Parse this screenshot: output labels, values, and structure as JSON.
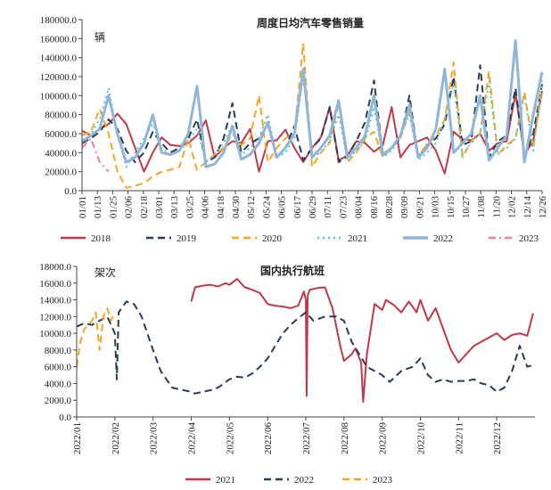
{
  "chart_data": [
    {
      "type": "line",
      "title": "周度日均汽车零售销量",
      "unit_label": "辆",
      "ylim": [
        0,
        180000
      ],
      "yticks": [
        0,
        20000,
        40000,
        60000,
        80000,
        100000,
        120000,
        140000,
        160000,
        180000
      ],
      "ytick_labels": [
        "0.0",
        "20000.0",
        "40000.0",
        "60000.0",
        "80000.0",
        "100000.0",
        "120000.0",
        "140000.0",
        "160000.0",
        "180000.0"
      ],
      "x_labels": [
        "01/01",
        "01/13",
        "01/25",
        "02/06",
        "02/18",
        "03/01",
        "03/13",
        "03/25",
        "04/06",
        "04/18",
        "04/30",
        "05/12",
        "05/24",
        "06/05",
        "06/17",
        "06/29",
        "07/11",
        "07/23",
        "08/04",
        "08/16",
        "08/28",
        "09/09",
        "09/21",
        "10/03",
        "10/15",
        "10/27",
        "11/08",
        "11/20",
        "12/02",
        "12/14",
        "12/26"
      ],
      "x_unit": "week index (0 = 01/01, 52 = 12/26)",
      "xlim": [
        0,
        52
      ],
      "legend_position": "bottom",
      "series": [
        {
          "name": "2018",
          "color": "#c0394b",
          "dash": "solid",
          "width": 2,
          "x": [
            0,
            1,
            2,
            3,
            4,
            5,
            6,
            7,
            8,
            9,
            10,
            11,
            12,
            13,
            14,
            15,
            16,
            17,
            18,
            19,
            20,
            21,
            22,
            23,
            24,
            25,
            26,
            27,
            28,
            29,
            30,
            31,
            32,
            33,
            34,
            35,
            36,
            37,
            38,
            39,
            40,
            41,
            42,
            43,
            44,
            45,
            46,
            47,
            48,
            49,
            50,
            51,
            52
          ],
          "y": [
            63000,
            58000,
            65000,
            70000,
            81000,
            70000,
            45000,
            20000,
            40000,
            56000,
            48000,
            47000,
            50000,
            58000,
            74000,
            35000,
            45000,
            52000,
            50000,
            65000,
            20000,
            52000,
            53000,
            64000,
            45000,
            30000,
            45000,
            56000,
            88000,
            32000,
            37000,
            52000,
            50000,
            41000,
            48000,
            88000,
            35000,
            48000,
            52000,
            56000,
            42000,
            18000,
            62000,
            54000,
            53000,
            60000,
            42000,
            50000,
            52000,
            102000,
            38000,
            52000,
            105000
          ]
        },
        {
          "name": "2019",
          "color": "#2b3a55",
          "dash": "8,5",
          "width": 2,
          "x": [
            0,
            1,
            2,
            3,
            4,
            5,
            6,
            7,
            8,
            9,
            10,
            11,
            12,
            13,
            14,
            15,
            16,
            17,
            18,
            19,
            20,
            21,
            22,
            23,
            24,
            25,
            26,
            27,
            28,
            29,
            30,
            31,
            32,
            33,
            34,
            35,
            36,
            37,
            38,
            39,
            40,
            41,
            42,
            43,
            44,
            45,
            46,
            47,
            48,
            49,
            50,
            51,
            52
          ],
          "y": [
            50000,
            55000,
            62000,
            75000,
            65000,
            42000,
            30000,
            40000,
            62000,
            50000,
            40000,
            45000,
            55000,
            75000,
            30000,
            35000,
            55000,
            92000,
            40000,
            50000,
            55000,
            70000,
            35000,
            45000,
            68000,
            32000,
            45000,
            55000,
            88000,
            30000,
            36000,
            52000,
            72000,
            116000,
            38000,
            45000,
            55000,
            100000,
            35000,
            48000,
            55000,
            70000,
            120000,
            48000,
            52000,
            132000,
            35000,
            52000,
            58000,
            108000,
            35000,
            60000,
            112000
          ]
        },
        {
          "name": "2020",
          "color": "#f5a623",
          "dash": "8,5",
          "width": 2,
          "x": [
            0,
            1,
            2,
            3,
            4,
            5,
            6,
            7,
            8,
            9,
            10,
            11,
            12,
            13,
            14,
            15,
            16,
            17,
            18,
            19,
            20,
            21,
            22,
            23,
            24,
            25,
            26,
            27,
            28,
            29,
            30,
            31,
            32,
            33,
            34,
            35,
            36,
            37,
            38,
            39,
            40,
            41,
            42,
            43,
            44,
            45,
            46,
            47,
            48,
            49,
            50,
            51,
            52
          ],
          "y": [
            58000,
            62000,
            86000,
            60000,
            20000,
            3000,
            5000,
            8000,
            15000,
            20000,
            22000,
            25000,
            55000,
            22000,
            30000,
            38000,
            45000,
            60000,
            48000,
            55000,
            100000,
            30000,
            45000,
            55000,
            60000,
            155000,
            25000,
            40000,
            50000,
            92000,
            30000,
            40000,
            55000,
            62000,
            35000,
            45000,
            55000,
            85000,
            38000,
            48000,
            58000,
            75000,
            135000,
            35000,
            52000,
            60000,
            125000,
            38000,
            48000,
            55000,
            104000,
            45000,
            110000
          ]
        },
        {
          "name": "2021",
          "color": "#5bc5cf",
          "dash": "2,4",
          "width": 2,
          "x": [
            0,
            1,
            2,
            3,
            4,
            5,
            6,
            7,
            8,
            9,
            10,
            11,
            12,
            13,
            14,
            15,
            16,
            17,
            18,
            19,
            20,
            21,
            22,
            23,
            24,
            25,
            26,
            27,
            28,
            29,
            30,
            31,
            32,
            33,
            34,
            35,
            36,
            37,
            38,
            39,
            40,
            41,
            42,
            43,
            44,
            45,
            46,
            47,
            48,
            49,
            50,
            51,
            52
          ],
          "y": [
            48000,
            60000,
            75000,
            108000,
            60000,
            25000,
            40000,
            55000,
            70000,
            45000,
            38000,
            42000,
            52000,
            65000,
            30000,
            38000,
            50000,
            70000,
            38000,
            45000,
            55000,
            80000,
            35000,
            40000,
            55000,
            120000,
            35000,
            40000,
            52000,
            80000,
            32000,
            42000,
            52000,
            88000,
            35000,
            42000,
            58000,
            80000,
            32000,
            40000,
            50000,
            75000,
            112000,
            38000,
            50000,
            60000,
            115000,
            38000,
            45000,
            55000,
            100000,
            42000,
            118000
          ]
        },
        {
          "name": "2022",
          "color": "#8fb6d9",
          "dash": "solid",
          "width": 3,
          "x": [
            0,
            1,
            2,
            3,
            4,
            5,
            6,
            7,
            8,
            9,
            10,
            11,
            12,
            13,
            14,
            15,
            16,
            17,
            18,
            19,
            20,
            21,
            22,
            23,
            24,
            25,
            26,
            27,
            28,
            29,
            30,
            31,
            32,
            33,
            34,
            35,
            36,
            37,
            38,
            39,
            40,
            41,
            42,
            43,
            44,
            45,
            46,
            47,
            48,
            49,
            50,
            51,
            52
          ],
          "y": [
            52000,
            58000,
            65000,
            100000,
            60000,
            30000,
            35000,
            50000,
            80000,
            40000,
            38000,
            42000,
            60000,
            110000,
            25000,
            28000,
            40000,
            68000,
            33000,
            38000,
            50000,
            72000,
            35000,
            45000,
            60000,
            128000,
            35000,
            45000,
            58000,
            95000,
            35000,
            45000,
            58000,
            100000,
            38000,
            45000,
            58000,
            90000,
            35000,
            45000,
            65000,
            128000,
            40000,
            50000,
            60000,
            100000,
            32000,
            45000,
            58000,
            158000,
            30000,
            80000,
            125000
          ]
        },
        {
          "name": "2023",
          "color": "#f27c94",
          "dash": "8,4,2,4",
          "width": 2,
          "x": [
            0,
            1,
            2,
            3
          ],
          "y": [
            45000,
            55000,
            30000,
            20000
          ]
        }
      ]
    },
    {
      "type": "line",
      "title": "国内执行航班",
      "unit_label": "架次",
      "ylim": [
        0,
        18000
      ],
      "yticks": [
        0,
        2000,
        4000,
        6000,
        8000,
        10000,
        12000,
        14000,
        16000,
        18000
      ],
      "ytick_labels": [
        "0.0",
        "2000.0",
        "4000.0",
        "6000.0",
        "8000.0",
        "10000.0",
        "12000.0",
        "14000.0",
        "16000.0",
        "18000.0"
      ],
      "x_labels": [
        "2022/01",
        "2022/02",
        "2022/03",
        "2022/04",
        "2022/05",
        "2022/06",
        "2022/07",
        "2022/08",
        "2022/09",
        "2022/10",
        "2022/11",
        "2022/12"
      ],
      "x_unit": "month of year (1 = Jan, 13 = end of Dec)",
      "xlim": [
        1,
        13
      ],
      "legend_position": "bottom",
      "series": [
        {
          "name": "2021",
          "color": "#c0394b",
          "dash": "solid",
          "width": 2,
          "x": [
            4.0,
            4.1,
            4.3,
            4.5,
            4.7,
            4.9,
            5.0,
            5.2,
            5.4,
            5.6,
            5.8,
            6.0,
            6.2,
            6.4,
            6.6,
            6.8,
            6.95,
            7.0,
            7.02,
            7.05,
            7.1,
            7.3,
            7.5,
            7.7,
            7.9,
            8.0,
            8.2,
            8.3,
            8.45,
            8.5,
            8.6,
            8.8,
            9.0,
            9.1,
            9.3,
            9.5,
            9.7,
            9.9,
            10.0,
            10.2,
            10.4,
            10.6,
            10.8,
            11.0,
            11.2,
            11.4,
            11.6,
            11.8,
            12.0,
            12.2,
            12.4,
            12.6,
            12.8,
            12.95
          ],
          "y": [
            13800,
            15500,
            15700,
            15800,
            15600,
            16000,
            15800,
            16500,
            15500,
            15200,
            14800,
            13500,
            13300,
            13200,
            13000,
            13300,
            15000,
            14000,
            2500,
            14500,
            15200,
            15400,
            15500,
            13000,
            8500,
            6700,
            7500,
            8200,
            6500,
            1800,
            7500,
            13500,
            12800,
            14000,
            13400,
            12500,
            13800,
            12500,
            14000,
            11500,
            13000,
            10500,
            8000,
            6500,
            7500,
            8500,
            9000,
            9500,
            10000,
            9200,
            9800,
            10000,
            9700,
            12400
          ]
        },
        {
          "name": "2022",
          "color": "#2b3a55",
          "dash": "8,5",
          "width": 2,
          "x": [
            1.0,
            1.2,
            1.4,
            1.6,
            1.8,
            2.0,
            2.05,
            2.1,
            2.3,
            2.5,
            2.7,
            3.0,
            3.2,
            3.5,
            3.8,
            4.0,
            4.1,
            4.3,
            4.5,
            4.7,
            5.0,
            5.2,
            5.4,
            5.6,
            5.8,
            6.0,
            6.2,
            6.4,
            6.6,
            6.8,
            7.0,
            7.2,
            7.5,
            7.8,
            8.0,
            8.2,
            8.4,
            8.6,
            8.8,
            9.0,
            9.2,
            9.5,
            9.8,
            10.0,
            10.2,
            10.4,
            10.6,
            10.8,
            11.0,
            11.2,
            11.4,
            11.6,
            11.8,
            12.0,
            12.2,
            12.4,
            12.6,
            12.8,
            12.95
          ],
          "y": [
            10800,
            11200,
            11000,
            11500,
            12000,
            10000,
            4500,
            12500,
            13800,
            13500,
            12000,
            8000,
            5500,
            3500,
            3200,
            3000,
            2800,
            3000,
            3200,
            3500,
            4500,
            4800,
            4700,
            5200,
            6000,
            7000,
            8500,
            10000,
            11000,
            11800,
            12500,
            11500,
            12000,
            12000,
            11500,
            9000,
            7500,
            6000,
            5500,
            5000,
            4200,
            5500,
            6000,
            7000,
            5000,
            4200,
            4500,
            4200,
            4300,
            4300,
            4500,
            4000,
            3800,
            3000,
            3500,
            5500,
            8500,
            6000,
            6200
          ]
        },
        {
          "name": "2023",
          "color": "#f5a623",
          "dash": "8,5",
          "width": 2,
          "x": [
            1.0,
            1.1,
            1.2,
            1.3,
            1.4,
            1.5,
            1.6,
            1.7,
            1.8,
            1.9,
            2.0
          ],
          "y": [
            6000,
            9000,
            10500,
            11000,
            11500,
            12500,
            8000,
            12000,
            13000,
            11500,
            12500
          ]
        }
      ]
    }
  ]
}
